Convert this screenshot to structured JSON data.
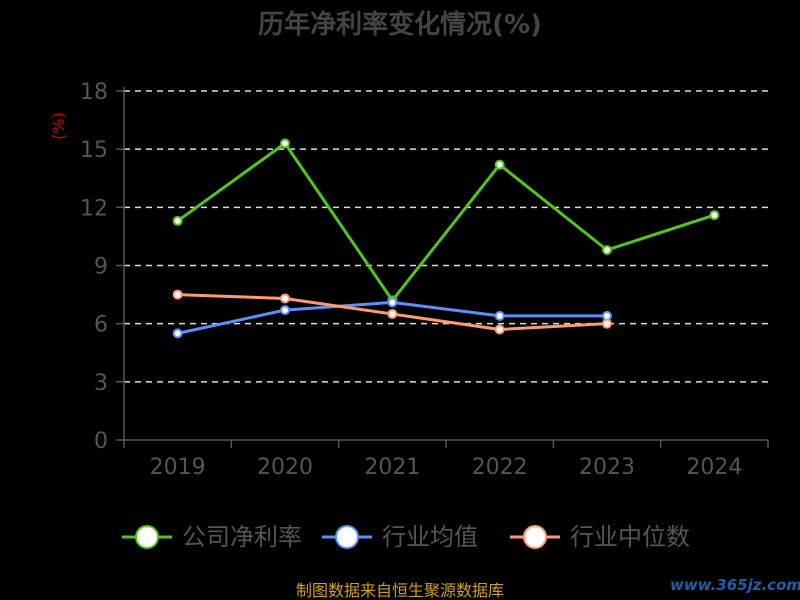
{
  "chart_data": {
    "type": "line",
    "title": "历年净利率变化情况(%)",
    "ylabel": "(%)",
    "xlabel": "",
    "categories": [
      "2019",
      "2020",
      "2021",
      "2022",
      "2023",
      "2024"
    ],
    "ylim": [
      0,
      18
    ],
    "yticks": [
      "0",
      "3",
      "6",
      "9",
      "12",
      "15",
      "18"
    ],
    "grid": true,
    "legend_position": "bottom",
    "series": [
      {
        "name": "公司净利率",
        "color": "#52c41a",
        "values": [
          11.3,
          15.3,
          7.2,
          14.2,
          9.8,
          11.6
        ]
      },
      {
        "name": "行业均值",
        "color": "#5b8ff9",
        "values": [
          5.5,
          6.7,
          7.1,
          6.4,
          6.4,
          null
        ]
      },
      {
        "name": "行业中位数",
        "color": "#ff9a6e",
        "values": [
          7.5,
          7.3,
          6.5,
          5.7,
          6.0,
          null
        ]
      }
    ]
  },
  "footer": {
    "source_text": "制图数据来自恒生聚源数据库"
  },
  "watermark": {
    "text": "www.365jz.com"
  },
  "colors": {
    "background": "#000000",
    "title": "#444444",
    "axis": "#555555",
    "tick_label": "#555555",
    "grid": "#dddddd",
    "ylabel": "#cc0000",
    "footer": "#d4a017",
    "watermark": "#1f5fa8"
  }
}
